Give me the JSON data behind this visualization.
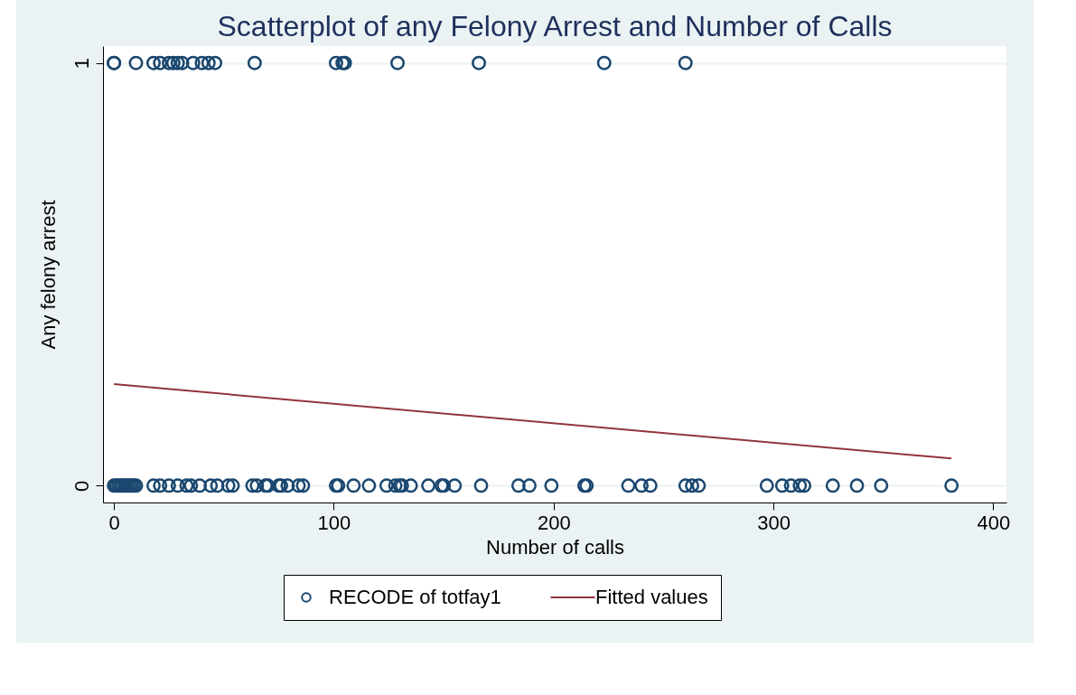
{
  "chart_data": {
    "type": "scatter",
    "title": "Scatterplot of any Felony Arrest and Number of Calls",
    "xlabel": "Number of calls",
    "ylabel": "Any felony arrest",
    "xlim": [
      -5,
      406
    ],
    "ylim": [
      -0.04,
      1.04
    ],
    "xticks": [
      0,
      100,
      200,
      300,
      400
    ],
    "yticks": [
      0,
      1
    ],
    "grid": "y",
    "legend": "bottom",
    "series": [
      {
        "name": "RECODE of totfay1",
        "marker": "circle",
        "color": "#1a476f",
        "x": [
          0,
          0,
          10,
          18,
          21,
          25,
          27,
          29,
          31,
          36,
          40,
          43,
          46,
          64,
          101,
          104,
          105,
          129,
          166,
          223,
          260,
          0,
          1,
          2,
          3,
          4,
          5,
          6,
          7,
          8,
          9,
          10,
          18,
          21,
          25,
          29,
          33,
          35,
          39,
          44,
          47,
          52,
          54,
          63,
          65,
          69,
          70,
          75,
          76,
          79,
          84,
          86,
          101,
          102,
          109,
          116,
          124,
          128,
          130,
          131,
          135,
          143,
          149,
          150,
          155,
          167,
          184,
          189,
          199,
          214,
          215,
          234,
          240,
          244,
          260,
          263,
          266,
          297,
          304,
          308,
          312,
          314,
          327,
          338,
          349,
          381
        ],
        "values": [
          1,
          1,
          1,
          1,
          1,
          1,
          1,
          1,
          1,
          1,
          1,
          1,
          1,
          1,
          1,
          1,
          1,
          1,
          1,
          1,
          1,
          0,
          0,
          0,
          0,
          0,
          0,
          0,
          0,
          0,
          0,
          0,
          0,
          0,
          0,
          0,
          0,
          0,
          0,
          0,
          0,
          0,
          0,
          0,
          0,
          0,
          0,
          0,
          0,
          0,
          0,
          0,
          0,
          0,
          0,
          0,
          0,
          0,
          0,
          0,
          0,
          0,
          0,
          0,
          0,
          0,
          0,
          0,
          0,
          0,
          0,
          0,
          0,
          0,
          0,
          0,
          0,
          0,
          0,
          0,
          0,
          0,
          0,
          0,
          0,
          0
        ]
      },
      {
        "name": "Fitted values",
        "type": "line",
        "color": "#90353b",
        "line_style": "solid",
        "x": [
          0,
          381
        ],
        "values": [
          0.24,
          0.064
        ]
      }
    ]
  }
}
